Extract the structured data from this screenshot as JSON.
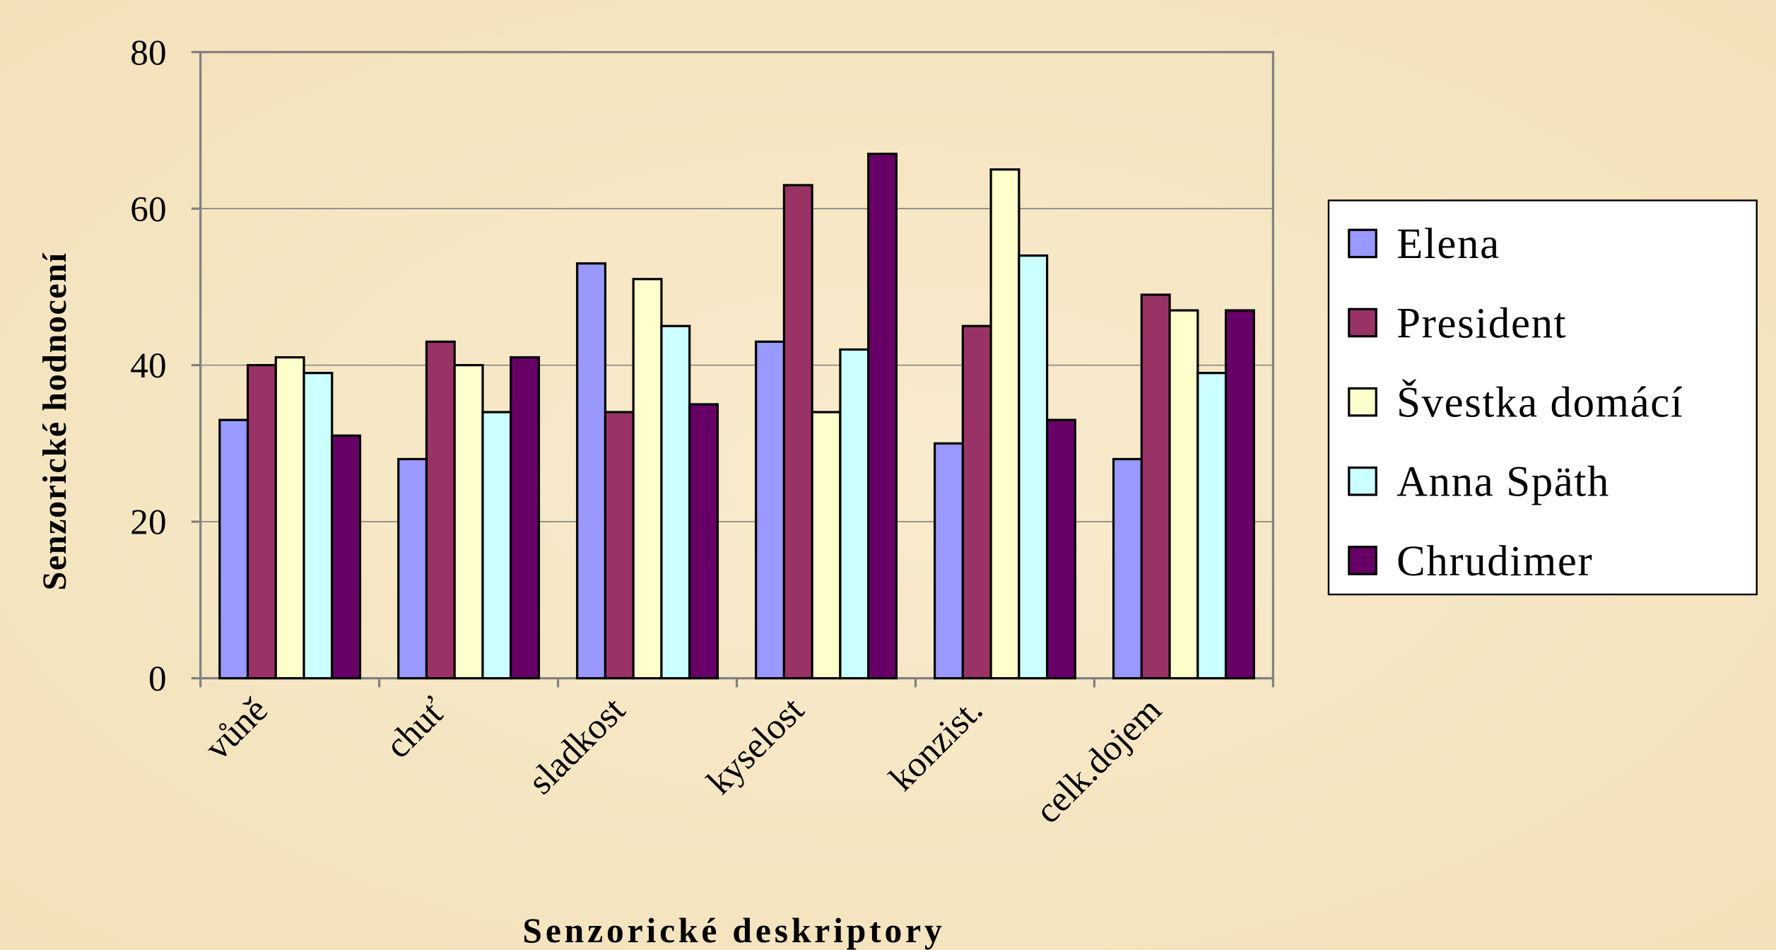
{
  "chart_data": {
    "type": "bar",
    "x_label": "Senzorické deskriptory",
    "y_label": "Senzorické hodnocení",
    "categories": [
      "vůně",
      "chuť",
      "sladkost",
      "kyselost",
      "konzist.",
      "celk.dojem"
    ],
    "series": [
      {
        "name": "Elena",
        "color": "#9999ff",
        "values": [
          33,
          28,
          53,
          43,
          30,
          28
        ]
      },
      {
        "name": "President",
        "color": "#993366",
        "values": [
          40,
          43,
          34,
          63,
          45,
          49
        ]
      },
      {
        "name": "Švestka domácí",
        "color": "#ffffcc",
        "values": [
          41,
          40,
          51,
          34,
          65,
          47
        ]
      },
      {
        "name": "Anna Späth",
        "color": "#ccffff",
        "values": [
          39,
          34,
          45,
          42,
          54,
          39
        ]
      },
      {
        "name": "Chrudimer",
        "color": "#660066",
        "values": [
          31,
          41,
          35,
          67,
          33,
          47
        ]
      }
    ],
    "ylim": [
      0,
      80
    ],
    "yticks": [
      0,
      20,
      40,
      60,
      80
    ],
    "grid": true,
    "legend": "right"
  }
}
